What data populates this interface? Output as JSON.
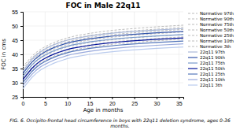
{
  "chart_data": {
    "type": "line",
    "title": "FOC in Male 22q11",
    "x_label": "Age in months",
    "y_label": "FOC in cms",
    "caption": "FIG. 6. Occipito-frontal head circumference in boys with 22q11 deletion syndrome, ages 0-36 months.",
    "xlim": [
      0,
      36
    ],
    "ylim": [
      25,
      55
    ],
    "xticks": [
      0,
      5,
      10,
      15,
      20,
      25,
      30,
      35
    ],
    "yticks": [
      25,
      30,
      35,
      40,
      45,
      50,
      55
    ],
    "grid": true,
    "legend": "right",
    "x": [
      0,
      1,
      2,
      3,
      4,
      5,
      6,
      7,
      8,
      9,
      10,
      11,
      12,
      15,
      18,
      21,
      24,
      30,
      36
    ],
    "series": [
      {
        "name": "Normative 97th",
        "color": "#aaaaaa",
        "line_style": "dashed",
        "values": [
          35.5,
          37.5,
          39.3,
          40.7,
          41.8,
          42.7,
          43.5,
          44.2,
          44.8,
          45.3,
          45.8,
          46.2,
          46.6,
          47.4,
          48.1,
          48.6,
          49.0,
          49.7,
          50.3
        ]
      },
      {
        "name": "Normative 90th",
        "color": "#aaaaaa",
        "line_style": "dashed",
        "values": [
          34.8,
          36.9,
          38.7,
          40.1,
          41.2,
          42.1,
          42.9,
          43.6,
          44.2,
          44.7,
          45.1,
          45.5,
          45.9,
          46.7,
          47.3,
          47.8,
          48.2,
          48.9,
          49.5
        ]
      },
      {
        "name": "Normative 75th",
        "color": "#aaaaaa",
        "line_style": "dashed",
        "values": [
          34.0,
          36.1,
          37.9,
          39.3,
          40.4,
          41.3,
          42.1,
          42.8,
          43.4,
          43.9,
          44.4,
          44.8,
          45.1,
          46.0,
          46.6,
          47.1,
          47.5,
          48.2,
          48.8
        ]
      },
      {
        "name": "Normative 50th",
        "color": "#aaaaaa",
        "line_style": "dashed",
        "values": [
          33.2,
          35.2,
          37.0,
          38.4,
          39.5,
          40.4,
          41.2,
          41.9,
          42.5,
          43.0,
          43.5,
          43.9,
          44.2,
          45.1,
          45.7,
          46.2,
          46.6,
          47.3,
          47.9
        ]
      },
      {
        "name": "Normative 25th",
        "color": "#aaaaaa",
        "line_style": "dashed",
        "values": [
          32.3,
          34.3,
          36.1,
          37.5,
          38.6,
          39.5,
          40.3,
          41.0,
          41.6,
          42.1,
          42.6,
          43.0,
          43.3,
          44.2,
          44.8,
          45.3,
          45.7,
          46.4,
          47.0
        ]
      },
      {
        "name": "Normative 10th",
        "color": "#aaaaaa",
        "line_style": "dashed",
        "values": [
          31.5,
          33.5,
          35.3,
          36.7,
          37.8,
          38.7,
          39.5,
          40.2,
          40.8,
          41.3,
          41.8,
          42.2,
          42.5,
          43.4,
          44.0,
          44.5,
          44.9,
          45.6,
          46.2
        ]
      },
      {
        "name": "Normative 3th",
        "color": "#aaaaaa",
        "line_style": "dashed",
        "values": [
          30.7,
          32.7,
          34.5,
          35.9,
          37.0,
          37.9,
          38.7,
          39.4,
          40.0,
          40.5,
          41.0,
          41.4,
          41.7,
          42.6,
          43.2,
          43.7,
          44.1,
          44.8,
          45.4
        ]
      },
      {
        "name": "22q11 97th",
        "color": "#aab8d8",
        "line_style": "solid",
        "values": [
          34.0,
          36.2,
          38.2,
          39.7,
          40.9,
          41.9,
          42.7,
          43.4,
          44.0,
          44.5,
          45.0,
          45.4,
          45.7,
          46.5,
          47.1,
          47.6,
          48.0,
          48.6,
          49.1
        ]
      },
      {
        "name": "22q11 90th",
        "color": "#3355aa",
        "line_style": "solid",
        "values": [
          33.2,
          35.3,
          37.2,
          38.7,
          39.9,
          40.9,
          41.7,
          42.4,
          43.0,
          43.5,
          44.0,
          44.4,
          44.7,
          45.5,
          46.1,
          46.6,
          47.0,
          47.6,
          48.1
        ]
      },
      {
        "name": "22q11 75th",
        "color": "#7799cc",
        "line_style": "solid",
        "values": [
          32.2,
          34.3,
          36.2,
          37.7,
          38.9,
          39.8,
          40.6,
          41.3,
          41.9,
          42.4,
          42.9,
          43.3,
          43.6,
          44.4,
          45.0,
          45.5,
          45.9,
          46.5,
          47.0
        ]
      },
      {
        "name": "22q11 50th",
        "color": "#001199",
        "line_style": "solid",
        "values": [
          31.1,
          33.1,
          35.0,
          36.5,
          37.7,
          38.6,
          39.4,
          40.1,
          40.7,
          41.2,
          41.7,
          42.1,
          42.4,
          43.2,
          43.8,
          44.3,
          44.7,
          45.3,
          45.8
        ]
      },
      {
        "name": "22q11 25th",
        "color": "#5577bb",
        "line_style": "solid",
        "values": [
          30.0,
          32.0,
          33.9,
          35.4,
          36.6,
          37.5,
          38.3,
          39.0,
          39.6,
          40.1,
          40.6,
          41.0,
          41.3,
          42.1,
          42.7,
          43.2,
          43.6,
          44.2,
          44.7
        ]
      },
      {
        "name": "22q11 10th",
        "color": "#99aadd",
        "line_style": "solid",
        "values": [
          29.0,
          31.0,
          32.9,
          34.4,
          35.6,
          36.5,
          37.3,
          38.0,
          38.6,
          39.1,
          39.6,
          40.0,
          40.3,
          41.1,
          41.7,
          42.2,
          42.6,
          43.2,
          43.7
        ]
      },
      {
        "name": "22q11 3th",
        "color": "#bbccee",
        "line_style": "solid",
        "values": [
          27.9,
          29.9,
          31.8,
          33.3,
          34.5,
          35.4,
          36.2,
          36.9,
          37.5,
          38.0,
          38.5,
          38.9,
          39.2,
          40.0,
          40.6,
          41.1,
          41.5,
          42.1,
          42.6
        ]
      }
    ]
  }
}
